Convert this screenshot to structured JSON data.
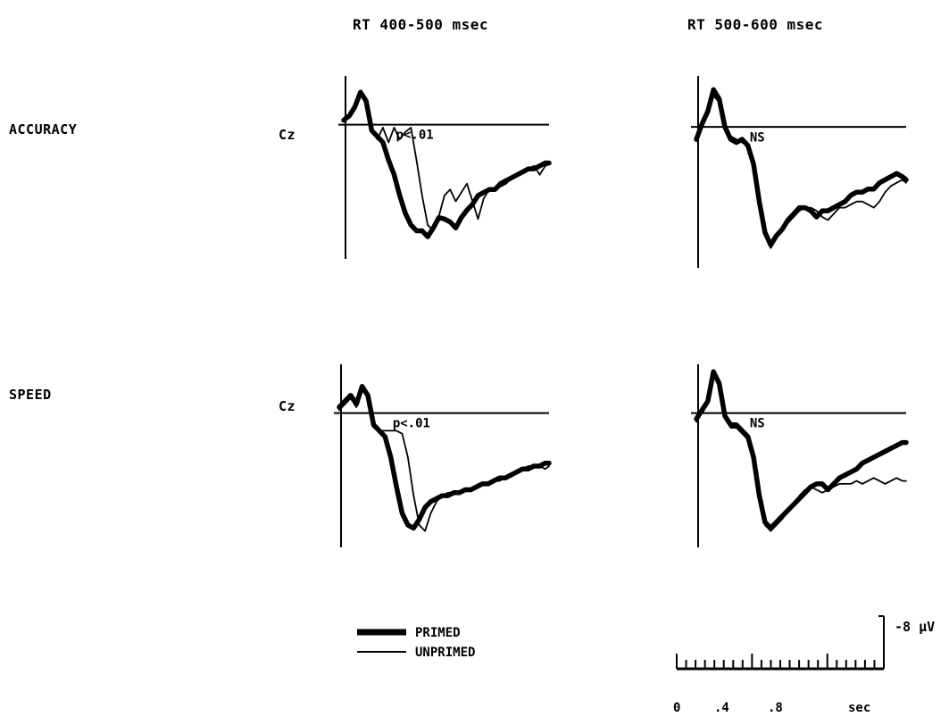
{
  "chart_data": {
    "type": "line",
    "columns": [
      "RT 400-500 msec",
      "RT 500-600 msec"
    ],
    "rows": [
      "ACCURACY",
      "SPEED"
    ],
    "electrode_label": "Cz",
    "legend": [
      {
        "name": "PRIMED",
        "style": "thick"
      },
      {
        "name": "UNPRIMED",
        "style": "thin"
      }
    ],
    "x_unit": "sec",
    "xlim": [
      0,
      1.1
    ],
    "x_ticks": [
      "0",
      ".4",
      ".8"
    ],
    "y_scale_label": "-8 µV",
    "y_direction": "negative up",
    "panels": [
      {
        "row": "ACCURACY",
        "column": "RT 400-500 msec",
        "annotation": "p<.01",
        "x": [
          0,
          0.03,
          0.06,
          0.09,
          0.12,
          0.15,
          0.18,
          0.21,
          0.24,
          0.27,
          0.3,
          0.33,
          0.36,
          0.39,
          0.42,
          0.45,
          0.48,
          0.51,
          0.54,
          0.57,
          0.6,
          0.63,
          0.66,
          0.69,
          0.72,
          0.75,
          0.78,
          0.81,
          0.84,
          0.87,
          0.9,
          0.93,
          0.96,
          0.99,
          1.02,
          1.05,
          1.08,
          1.1
        ],
        "series": [
          {
            "name": "PRIMED",
            "values": [
              0.6,
              1.2,
              2.4,
              4.4,
              3.2,
              -0.8,
              -1.6,
              -2.4,
              -4.8,
              -6.8,
              -9.6,
              -12.0,
              -13.6,
              -14.4,
              -14.4,
              -15.2,
              -14.0,
              -12.6,
              -12.8,
              -13.2,
              -14.0,
              -12.6,
              -11.6,
              -10.8,
              -9.6,
              -9.2,
              -8.8,
              -8.8,
              -8.0,
              -7.6,
              -7.2,
              -6.8,
              -6.4,
              -6.0,
              -6.0,
              -5.6,
              -5.2,
              -5.2
            ]
          },
          {
            "name": "UNPRIMED",
            "values": [
              0.4,
              1.4,
              2.6,
              4.0,
              3.0,
              -0.4,
              -2.0,
              -0.4,
              -2.4,
              -0.4,
              -2.0,
              -1.0,
              -0.4,
              -4.8,
              -9.6,
              -13.6,
              -14.4,
              -12.4,
              -9.6,
              -8.8,
              -10.4,
              -9.2,
              -8.0,
              -10.4,
              -12.8,
              -10.0,
              -8.8,
              -8.8,
              -8.4,
              -8.0,
              -7.2,
              -7.0,
              -6.4,
              -6.0,
              -5.6,
              -6.8,
              -5.6,
              -5.4
            ]
          }
        ]
      },
      {
        "row": "ACCURACY",
        "column": "RT 500-600 msec",
        "annotation": "NS",
        "x": [
          0,
          0.03,
          0.06,
          0.09,
          0.12,
          0.15,
          0.18,
          0.21,
          0.24,
          0.27,
          0.3,
          0.33,
          0.36,
          0.39,
          0.42,
          0.45,
          0.48,
          0.51,
          0.54,
          0.57,
          0.6,
          0.63,
          0.66,
          0.69,
          0.72,
          0.75,
          0.78,
          0.81,
          0.84,
          0.87,
          0.9,
          0.93,
          0.96,
          0.99,
          1.02,
          1.05,
          1.08,
          1.1
        ],
        "series": [
          {
            "name": "PRIMED",
            "values": [
              -1.6,
              0.4,
              2.0,
              4.8,
              3.6,
              0.0,
              -1.6,
              -2.0,
              -1.6,
              -2.4,
              -4.8,
              -9.6,
              -13.6,
              -15.2,
              -14.0,
              -13.2,
              -12.0,
              -11.2,
              -10.4,
              -10.4,
              -10.8,
              -11.6,
              -10.8,
              -10.8,
              -10.4,
              -10.0,
              -9.6,
              -8.8,
              -8.4,
              -8.4,
              -8.0,
              -8.0,
              -7.2,
              -6.8,
              -6.4,
              -6.0,
              -6.4,
              -6.8
            ]
          },
          {
            "name": "UNPRIMED",
            "values": [
              -1.2,
              0.8,
              1.6,
              4.0,
              3.2,
              0.4,
              -1.2,
              -1.6,
              -2.0,
              -2.4,
              -5.2,
              -10.0,
              -13.6,
              -15.6,
              -14.4,
              -13.2,
              -12.4,
              -11.6,
              -10.8,
              -10.4,
              -10.4,
              -10.8,
              -11.6,
              -12.0,
              -11.2,
              -10.4,
              -10.4,
              -10.0,
              -9.6,
              -9.6,
              -10.0,
              -10.4,
              -9.6,
              -8.4,
              -7.6,
              -7.2,
              -6.8,
              -7.2
            ]
          }
        ]
      },
      {
        "row": "SPEED",
        "column": "RT 400-500 msec",
        "annotation": "p<.01",
        "x": [
          0,
          0.03,
          0.06,
          0.09,
          0.12,
          0.15,
          0.18,
          0.21,
          0.24,
          0.27,
          0.3,
          0.33,
          0.36,
          0.39,
          0.42,
          0.45,
          0.48,
          0.51,
          0.54,
          0.57,
          0.6,
          0.63,
          0.66,
          0.69,
          0.72,
          0.75,
          0.78,
          0.81,
          0.84,
          0.87,
          0.9,
          0.93,
          0.96,
          0.99,
          1.02,
          1.05,
          1.08,
          1.1
        ],
        "series": [
          {
            "name": "PRIMED",
            "values": [
              0.8,
              1.6,
              2.4,
              1.2,
              3.6,
              2.4,
              -1.6,
              -2.4,
              -3.2,
              -6.0,
              -10.0,
              -13.6,
              -15.2,
              -15.6,
              -14.4,
              -12.8,
              -12.0,
              -11.6,
              -11.2,
              -11.2,
              -10.8,
              -10.8,
              -10.4,
              -10.4,
              -10.0,
              -9.6,
              -9.6,
              -9.2,
              -8.8,
              -8.8,
              -8.4,
              -8.0,
              -7.6,
              -7.6,
              -7.2,
              -7.2,
              -6.8,
              -6.8
            ]
          },
          {
            "name": "UNPRIMED",
            "values": [
              0.4,
              1.2,
              2.0,
              0.8,
              3.2,
              2.0,
              -2.0,
              -2.4,
              -2.4,
              -2.4,
              -2.4,
              -2.8,
              -6.0,
              -11.2,
              -15.2,
              -16.0,
              -13.6,
              -12.0,
              -11.2,
              -10.8,
              -10.8,
              -10.8,
              -10.4,
              -10.4,
              -10.0,
              -9.6,
              -9.6,
              -9.2,
              -9.2,
              -8.8,
              -8.4,
              -8.0,
              -7.6,
              -7.2,
              -7.2,
              -7.2,
              -7.6,
              -7.2
            ]
          }
        ]
      },
      {
        "row": "SPEED",
        "column": "RT 500-600 msec",
        "annotation": "NS",
        "x": [
          0,
          0.03,
          0.06,
          0.09,
          0.12,
          0.15,
          0.18,
          0.21,
          0.24,
          0.27,
          0.3,
          0.33,
          0.36,
          0.39,
          0.42,
          0.45,
          0.48,
          0.51,
          0.54,
          0.57,
          0.6,
          0.63,
          0.66,
          0.69,
          0.72,
          0.75,
          0.78,
          0.81,
          0.84,
          0.87,
          0.9,
          0.93,
          0.96,
          0.99,
          1.02,
          1.05,
          1.08,
          1.1
        ],
        "series": [
          {
            "name": "PRIMED",
            "values": [
              -0.8,
              0.4,
              1.6,
              5.6,
              4.0,
              -0.4,
              -1.6,
              -1.6,
              -2.4,
              -3.2,
              -6.0,
              -11.2,
              -14.8,
              -15.6,
              -14.8,
              -14.0,
              -13.2,
              -12.4,
              -11.6,
              -10.8,
              -10.0,
              -9.6,
              -9.6,
              -10.4,
              -9.6,
              -8.8,
              -8.4,
              -8.0,
              -7.6,
              -6.8,
              -6.4,
              -6.0,
              -5.6,
              -5.2,
              -4.8,
              -4.4,
              -4.0,
              -4.0
            ]
          },
          {
            "name": "UNPRIMED",
            "values": [
              -1.2,
              0.0,
              1.2,
              5.2,
              3.6,
              -0.8,
              -2.0,
              -2.0,
              -2.8,
              -3.6,
              -6.4,
              -11.6,
              -15.2,
              -16.0,
              -15.2,
              -14.4,
              -13.2,
              -12.4,
              -11.2,
              -10.4,
              -10.0,
              -10.4,
              -10.8,
              -10.4,
              -10.0,
              -9.6,
              -9.6,
              -9.6,
              -9.2,
              -9.6,
              -9.2,
              -8.8,
              -9.2,
              -9.6,
              -9.2,
              -8.8,
              -9.2,
              -9.2
            ]
          }
        ]
      }
    ]
  }
}
